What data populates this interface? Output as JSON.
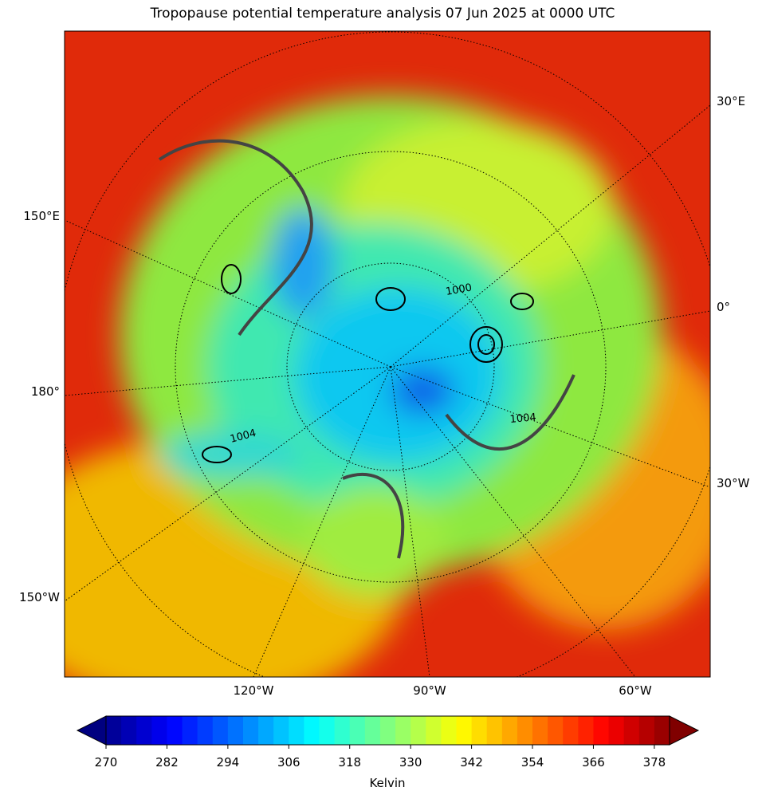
{
  "title": "Tropopause potential temperature analysis 07 Jun 2025 at 0000 UTC",
  "map": {
    "lon_labels": [
      "150°E",
      "180°",
      "150°W",
      "30°E",
      "0°",
      "30°W",
      "120°W",
      "90°W",
      "60°W"
    ],
    "contour_labels": [
      "1000",
      "1004",
      "1004"
    ]
  },
  "colorbar": {
    "label": "Kelvin",
    "lim": [
      270,
      381
    ],
    "ticks": [
      270,
      282,
      294,
      306,
      318,
      330,
      342,
      354,
      366,
      378
    ]
  }
}
